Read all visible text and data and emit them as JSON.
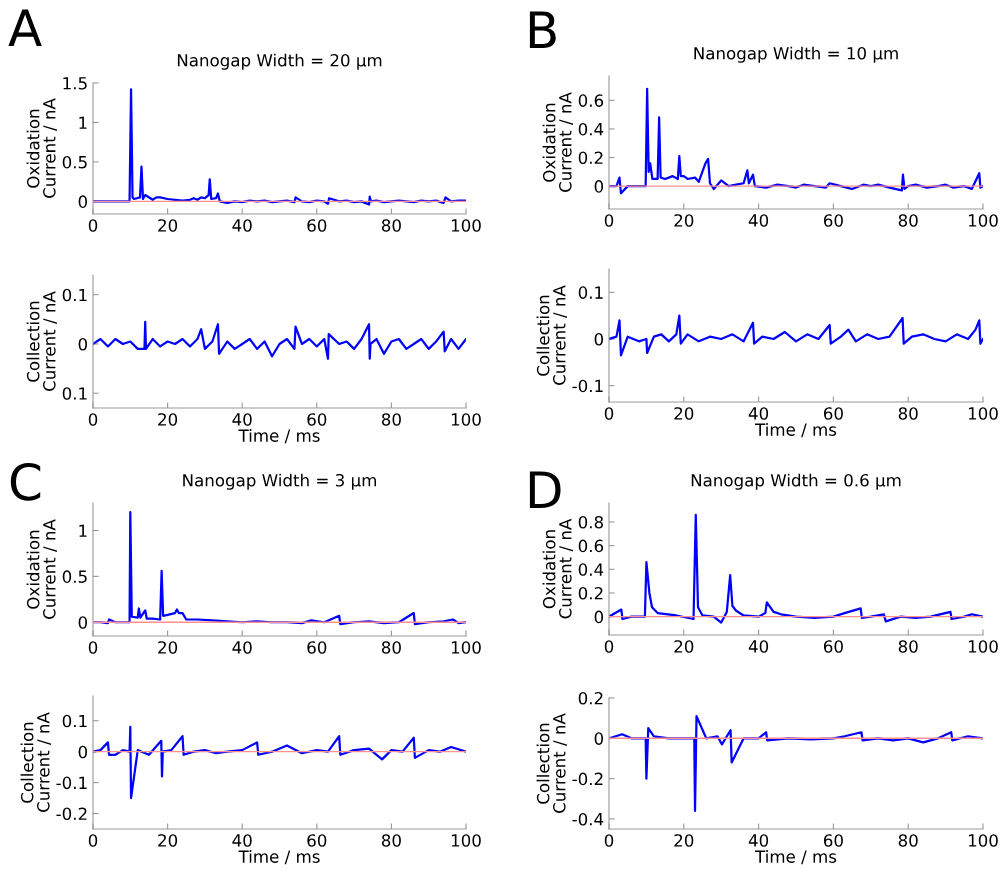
{
  "chart_data": [
    {
      "type": "line",
      "title": "Nanogap Width = 20 μm",
      "ylabel": "Oxidation\nCurrent / nA",
      "annotations": [
        "A"
      ],
      "xlim": [
        0,
        100
      ],
      "xticks": [
        0,
        20,
        40,
        60,
        80,
        100
      ],
      "ylim": [
        -0.16,
        1.5
      ],
      "yticks": [
        0,
        0.5,
        1,
        1.5
      ],
      "grid": false,
      "legend": false,
      "ref_lines": [
        {
          "axis": "y",
          "value": 0,
          "color": "#ff9090"
        }
      ],
      "series": [
        {
          "color": "#0000ff",
          "x": [
            0,
            2,
            4,
            6,
            8,
            9.8,
            10.2,
            10.6,
            11,
            12.6,
            13,
            13.4,
            14,
            16,
            17,
            18,
            20,
            22,
            24,
            26,
            27,
            28,
            29,
            30,
            31,
            31.3,
            31.7,
            33,
            33.5,
            34,
            36,
            38,
            40,
            42,
            44,
            46,
            48,
            50,
            52,
            54,
            54.3,
            56,
            58,
            60,
            62,
            63,
            63.3,
            66,
            68,
            70,
            72,
            74,
            74.2,
            74.5,
            76,
            78,
            80,
            82,
            84,
            86,
            88,
            90,
            92,
            94,
            94.5,
            96,
            98,
            100
          ],
          "values": [
            0,
            0,
            0,
            0,
            0,
            0,
            1.42,
            0.05,
            0.03,
            0.05,
            0.44,
            0.03,
            0.08,
            0.02,
            0.05,
            0.05,
            0.03,
            0.02,
            0.01,
            0.02,
            0.04,
            0.02,
            0.05,
            0.04,
            0.08,
            0.28,
            0.03,
            0.04,
            0.1,
            0,
            -0.02,
            0,
            -0.01,
            0.01,
            0,
            0.01,
            -0.01,
            0,
            0.01,
            -0.01,
            0.05,
            0,
            -0.01,
            0.01,
            0,
            -0.03,
            0.04,
            0,
            0.01,
            -0.01,
            0,
            -0.04,
            0.06,
            0,
            0.01,
            -0.01,
            0,
            0.01,
            0,
            -0.01,
            0.01,
            0,
            0.01,
            -0.02,
            0.05,
            0,
            0.01,
            0.01
          ]
        }
      ]
    },
    {
      "type": "line",
      "xlabel": "Time / ms",
      "ylabel": "Collection\nCurrent / nA",
      "xlim": [
        0,
        100
      ],
      "xticks": [
        0,
        20,
        40,
        60,
        80,
        100
      ],
      "ylim": [
        -0.13,
        0.14
      ],
      "yticks": [
        {
          "value": -0.1,
          "label": "0.1"
        },
        0,
        0.1
      ],
      "grid": false,
      "legend": false,
      "series": [
        {
          "color": "#0000ff",
          "x": [
            0,
            2,
            4,
            6,
            8,
            10,
            12,
            13.8,
            14,
            14.2,
            16,
            18,
            20,
            22,
            24,
            26,
            28,
            29,
            30,
            32,
            33.5,
            33.8,
            36,
            38,
            40,
            42,
            44,
            46,
            48,
            50,
            52,
            54,
            54.3,
            56,
            58,
            60,
            62,
            63,
            63.2,
            66,
            68,
            70,
            72,
            74,
            74.2,
            74.4,
            76,
            78,
            80,
            82,
            84,
            86,
            88,
            90,
            92,
            94,
            94.3,
            96,
            98,
            100
          ],
          "values": [
            0,
            0.01,
            -0.005,
            0.01,
            0,
            0.005,
            -0.01,
            -0.01,
            0.045,
            -0.01,
            0.01,
            -0.005,
            0.005,
            0,
            0.01,
            -0.005,
            0.01,
            0.03,
            -0.01,
            0.005,
            0.04,
            -0.02,
            0.005,
            -0.01,
            0,
            0.01,
            -0.01,
            0.005,
            -0.025,
            0,
            0.01,
            -0.01,
            0.035,
            0,
            0.01,
            -0.005,
            0.01,
            -0.03,
            0.02,
            0,
            0.005,
            -0.01,
            0.01,
            0.04,
            -0.03,
            0,
            0.01,
            -0.02,
            0.005,
            0.01,
            -0.01,
            0,
            0.01,
            -0.01,
            0.005,
            0.025,
            -0.015,
            0.01,
            -0.01,
            0.01
          ]
        }
      ]
    },
    {
      "type": "line",
      "title": "Nanogap Width = 10 μm",
      "ylabel": "Oxidation\nCurrent / nA",
      "annotations": [
        "B"
      ],
      "xlim": [
        0,
        100
      ],
      "xticks": [
        0,
        20,
        40,
        60,
        80,
        100
      ],
      "ylim": [
        -0.16,
        0.77
      ],
      "yticks": [
        0,
        0.2,
        0.4,
        0.6
      ],
      "grid": false,
      "legend": false,
      "ref_lines": [
        {
          "axis": "y",
          "value": 0,
          "color": "#ff9090"
        }
      ],
      "series": [
        {
          "color": "#0000ff",
          "x": [
            0,
            2,
            2.8,
            3.2,
            5,
            8,
            9.8,
            10.2,
            10.6,
            11,
            11.6,
            13,
            13.4,
            13.8,
            15,
            17,
            18.4,
            18.8,
            19.2,
            20,
            21,
            23,
            24,
            25.8,
            26.5,
            27,
            28,
            30,
            32,
            34,
            36,
            37,
            37.4,
            38.5,
            39,
            42,
            45,
            48,
            50,
            52,
            55,
            58,
            59,
            62,
            65,
            68,
            70,
            72,
            75,
            78.3,
            78.6,
            79,
            80,
            82,
            85,
            88,
            90,
            92,
            95,
            97,
            99,
            99.3,
            100
          ],
          "values": [
            0,
            0,
            0.06,
            -0.05,
            0,
            0,
            0,
            0.68,
            0.1,
            0.16,
            0.05,
            0.05,
            0.48,
            0.06,
            0.05,
            0.07,
            0.05,
            0.21,
            0.07,
            0.07,
            0.05,
            0.06,
            0.03,
            0.16,
            0.19,
            0.02,
            -0.02,
            0.04,
            0,
            0.01,
            0.02,
            0.11,
            0.02,
            0.08,
            0,
            -0.01,
            0.01,
            0,
            -0.01,
            0.01,
            0,
            -0.01,
            0.02,
            0,
            -0.02,
            0.01,
            0,
            0.01,
            -0.01,
            -0.03,
            0.08,
            -0.02,
            0,
            0.01,
            -0.01,
            0,
            0.01,
            -0.01,
            0,
            -0.02,
            0.09,
            -0.01,
            0
          ]
        }
      ]
    },
    {
      "type": "line",
      "xlabel": "Time / ms",
      "ylabel": "Collection\nCurrent / nA",
      "xlim": [
        0,
        100
      ],
      "xticks": [
        0,
        20,
        40,
        60,
        80,
        100
      ],
      "ylim": [
        -0.135,
        0.15
      ],
      "yticks": [
        -0.1,
        0,
        0.1
      ],
      "grid": false,
      "legend": false,
      "series": [
        {
          "color": "#0000ff",
          "x": [
            0,
            2,
            2.8,
            3.2,
            5,
            8,
            10,
            10.2,
            12,
            14,
            16,
            18,
            18.8,
            19.2,
            21,
            24,
            27,
            30,
            33,
            36,
            38.5,
            38.8,
            41,
            44,
            47,
            50,
            53,
            56,
            59,
            59.3,
            62,
            64,
            66,
            69,
            72,
            75,
            78.5,
            78.8,
            81,
            84,
            87,
            90,
            93,
            96,
            98,
            99,
            99.3,
            100
          ],
          "values": [
            0,
            0.005,
            0.04,
            -0.035,
            0.005,
            -0.005,
            0,
            -0.03,
            0.005,
            0.01,
            -0.005,
            0.01,
            0.05,
            -0.01,
            0.01,
            -0.005,
            0.005,
            0,
            0.01,
            -0.005,
            0.035,
            -0.01,
            0.005,
            0,
            0.015,
            -0.005,
            0.01,
            0,
            0.03,
            -0.01,
            0.005,
            0.02,
            -0.005,
            0.01,
            0,
            0.005,
            0.045,
            -0.01,
            0.005,
            0.01,
            0,
            -0.005,
            0.01,
            0,
            0.02,
            0.04,
            -0.01,
            0
          ]
        }
      ]
    },
    {
      "type": "line",
      "title": "Nanogap Width = 3 μm",
      "ylabel": "Oxidation\nCurrent / nA",
      "annotations": [
        "C"
      ],
      "xlim": [
        0,
        100
      ],
      "xticks": [
        0,
        20,
        40,
        60,
        80,
        100
      ],
      "ylim": [
        -0.15,
        1.3
      ],
      "yticks": [
        0,
        0.5,
        1
      ],
      "grid": false,
      "legend": false,
      "ref_lines": [
        {
          "axis": "y",
          "value": 0,
          "color": "#ff9090"
        }
      ],
      "series": [
        {
          "color": "#0000ff",
          "x": [
            0,
            2,
            4,
            4.3,
            6,
            8,
            9.8,
            10,
            10.4,
            12,
            12.3,
            12.7,
            14,
            14.4,
            16,
            18,
            18.4,
            18.8,
            20,
            22,
            22.5,
            23,
            24,
            25,
            28,
            32,
            36,
            40,
            44,
            48,
            52,
            56,
            58.5,
            62,
            66,
            66.3,
            70,
            74,
            78,
            82,
            86,
            86.3,
            90,
            94,
            96.5,
            98,
            100
          ],
          "values": [
            0,
            0,
            -0.01,
            0.03,
            0,
            0,
            0,
            1.2,
            0.06,
            0.05,
            0.15,
            0.05,
            0.13,
            0.04,
            0.04,
            0.03,
            0.56,
            0.07,
            0.08,
            0.1,
            0.14,
            0.1,
            0.1,
            0.03,
            0.03,
            0.02,
            0.01,
            0,
            0.01,
            0,
            0,
            -0.01,
            0.02,
            0,
            0.07,
            -0.02,
            0,
            0.01,
            -0.01,
            0,
            0.1,
            -0.02,
            0,
            0.01,
            0.03,
            -0.01,
            0
          ]
        }
      ]
    },
    {
      "type": "line",
      "xlabel": "Time / ms",
      "ylabel": "Collection\nCurrent / nA",
      "xlim": [
        0,
        100
      ],
      "xticks": [
        0,
        20,
        40,
        60,
        80,
        100
      ],
      "ylim": [
        -0.25,
        0.18
      ],
      "yticks": [
        -0.2,
        -0.1,
        0,
        0.1
      ],
      "grid": false,
      "legend": false,
      "ref_lines": [
        {
          "axis": "y",
          "value": 0,
          "color": "#ff9090"
        }
      ],
      "series": [
        {
          "color": "#0000ff",
          "x": [
            0,
            2,
            4,
            4.3,
            6,
            8,
            9.8,
            10,
            10.2,
            12,
            15,
            18.3,
            18.5,
            18.7,
            21,
            24,
            24.3,
            27,
            30,
            33,
            36,
            40,
            44,
            44.3,
            48,
            52,
            56,
            60,
            63,
            66,
            66.3,
            70,
            74,
            77.5,
            80,
            83,
            86,
            86.3,
            90,
            93,
            96,
            100
          ],
          "values": [
            0,
            0.005,
            0.03,
            -0.01,
            -0.01,
            0.005,
            0,
            0.08,
            -0.15,
            0.005,
            -0.01,
            0.035,
            -0.08,
            0,
            0.005,
            0.05,
            -0.01,
            0,
            0.005,
            -0.005,
            0,
            0.005,
            0.03,
            -0.01,
            0,
            0.02,
            -0.005,
            0.005,
            0,
            0.05,
            -0.01,
            0.005,
            0.01,
            -0.025,
            0.005,
            0,
            0.045,
            -0.02,
            0.005,
            0,
            0.015,
            0
          ]
        }
      ]
    },
    {
      "type": "line",
      "title": "Nanogap Width = 0.6 μm",
      "ylabel": "Oxidation\nCurrent / nA",
      "annotations": [
        "D"
      ],
      "xlim": [
        0,
        100
      ],
      "xticks": [
        0,
        20,
        40,
        60,
        80,
        100
      ],
      "ylim": [
        -0.155,
        0.96
      ],
      "yticks": [
        0,
        0.2,
        0.4,
        0.6,
        0.8
      ],
      "grid": false,
      "legend": false,
      "ref_lines": [
        {
          "axis": "y",
          "value": 0,
          "color": "#ff9090"
        }
      ],
      "series": [
        {
          "color": "#0000ff",
          "x": [
            0,
            3.3,
            3.6,
            6,
            9.6,
            10,
            10.8,
            11.5,
            13,
            18,
            22.6,
            23.2,
            23.8,
            25,
            28,
            30,
            31.5,
            32.4,
            33,
            34,
            36,
            40,
            41.8,
            42.2,
            44,
            46,
            50,
            55,
            60,
            63,
            67.3,
            67.6,
            70,
            73.5,
            74,
            78,
            82,
            86,
            91.3,
            91.6,
            95,
            97,
            100
          ],
          "values": [
            0,
            0.06,
            -0.02,
            0,
            0,
            0.46,
            0.2,
            0.08,
            0.03,
            0.01,
            -0.02,
            0.86,
            0.08,
            0.01,
            0,
            -0.05,
            0.04,
            0.35,
            0.09,
            0.05,
            0.01,
            0,
            0.03,
            0.12,
            0.04,
            0.02,
            0,
            -0.01,
            0,
            0.03,
            0.07,
            -0.01,
            0,
            0.02,
            -0.04,
            0,
            -0.01,
            0,
            0.04,
            -0.02,
            0,
            0.02,
            0
          ]
        }
      ]
    },
    {
      "type": "line",
      "xlabel": "Time / ms",
      "ylabel": "Collection\nCurrent / nA",
      "xlim": [
        0,
        100
      ],
      "xticks": [
        0,
        20,
        40,
        60,
        80,
        100
      ],
      "ylim": [
        -0.45,
        0.2
      ],
      "yticks": [
        -0.4,
        -0.2,
        0,
        0.2
      ],
      "grid": false,
      "legend": false,
      "ref_lines": [
        {
          "axis": "y",
          "value": 0,
          "color": "#ff9090"
        }
      ],
      "series": [
        {
          "color": "#0000ff",
          "x": [
            0,
            3.5,
            6,
            9.8,
            10,
            10.5,
            12,
            16,
            20,
            22.8,
            23,
            23.4,
            26,
            29,
            30.2,
            32.5,
            32.8,
            36,
            40,
            42,
            42.3,
            48,
            54,
            60,
            63,
            67.5,
            67.8,
            72,
            76,
            80,
            84,
            88,
            91.5,
            91.8,
            96,
            100
          ],
          "values": [
            0,
            0.02,
            0,
            0,
            -0.2,
            0.05,
            0.01,
            0,
            0,
            0,
            -0.36,
            0.11,
            0,
            0.01,
            -0.03,
            0.04,
            -0.12,
            0,
            0,
            0.03,
            -0.01,
            0,
            -0.005,
            0,
            0.01,
            0.03,
            -0.01,
            0,
            -0.01,
            0,
            -0.02,
            0,
            0.03,
            -0.01,
            0.01,
            0
          ]
        }
      ]
    }
  ]
}
